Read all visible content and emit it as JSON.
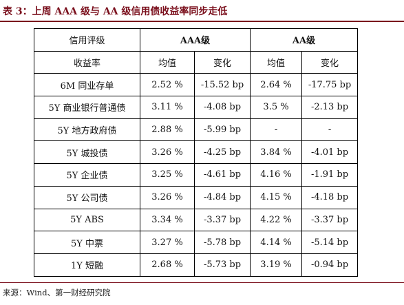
{
  "title": "表 3：上周 AAA 级与 AA 级信用债收益率同步走低",
  "table": {
    "header_row1": {
      "rating_label": "信用评级",
      "group1": "AAA级",
      "group2": "AA级"
    },
    "header_row2": {
      "yield_label": "收益率",
      "mean1": "均值",
      "change1": "变化",
      "mean2": "均值",
      "change2": "变化"
    },
    "rows": [
      {
        "name": "6M 同业存单",
        "aaa_mean": "2.52 %",
        "aaa_change": "-15.52 bp",
        "aa_mean": "2.64 %",
        "aa_change": "-17.75 bp"
      },
      {
        "name": "5Y 商业银行普通债",
        "aaa_mean": "3.11 %",
        "aaa_change": "-4.08 bp",
        "aa_mean": "3.5 %",
        "aa_change": "-2.13 bp"
      },
      {
        "name": "5Y 地方政府债",
        "aaa_mean": "2.88 %",
        "aaa_change": "-5.99 bp",
        "aa_mean": "-",
        "aa_change": "-"
      },
      {
        "name": "5Y 城投债",
        "aaa_mean": "3.26 %",
        "aaa_change": "-4.25 bp",
        "aa_mean": "3.84 %",
        "aa_change": "-4.01 bp"
      },
      {
        "name": "5Y 企业债",
        "aaa_mean": "3.25 %",
        "aaa_change": "-4.61 bp",
        "aa_mean": "4.16 %",
        "aa_change": "-1.91 bp"
      },
      {
        "name": "5Y 公司债",
        "aaa_mean": "3.26 %",
        "aaa_change": "-4.84 bp",
        "aa_mean": "4.15 %",
        "aa_change": "-4.18 bp"
      },
      {
        "name": "5Y ABS",
        "aaa_mean": "3.34 %",
        "aaa_change": "-3.37 bp",
        "aa_mean": "4.22 %",
        "aa_change": "-3.37 bp"
      },
      {
        "name": "5Y 中票",
        "aaa_mean": "3.27 %",
        "aaa_change": "-5.78 bp",
        "aa_mean": "4.14 %",
        "aa_change": "-5.14 bp"
      },
      {
        "name": "1Y 短融",
        "aaa_mean": "2.68 %",
        "aaa_change": "-5.73 bp",
        "aa_mean": "3.19 %",
        "aa_change": "-0.94 bp"
      }
    ]
  },
  "source": "来源：Wind、第一财经研究院",
  "colors": {
    "accent": "#7a0f1c",
    "border": "#000000"
  }
}
